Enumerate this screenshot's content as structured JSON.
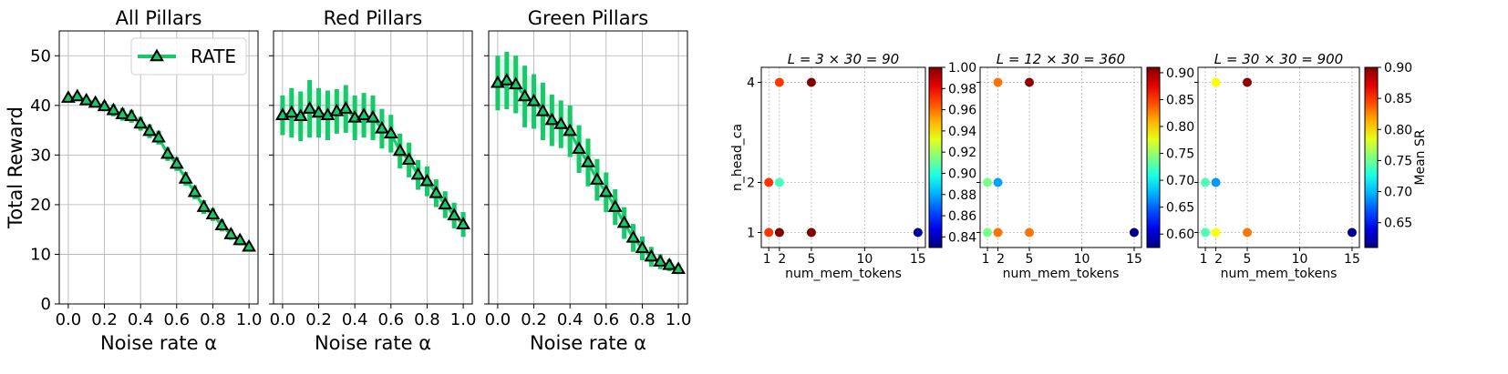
{
  "chart_data": [
    {
      "type": "line",
      "title": "All Pillars",
      "xlabel": "Noise rate α",
      "ylabel": "Total Reward",
      "xlim": [
        -0.05,
        1.05
      ],
      "ylim": [
        0,
        55
      ],
      "xticks": [
        0.0,
        0.2,
        0.4,
        0.6,
        0.8,
        1.0
      ],
      "xtick_labels": [
        "0.0",
        "0.2",
        "0.4",
        "0.6",
        "0.8",
        "1.0"
      ],
      "yticks": [
        0,
        10,
        20,
        30,
        40,
        50
      ],
      "ytick_labels": [
        "0",
        "10",
        "20",
        "30",
        "40",
        "50"
      ],
      "grid": true,
      "legend": {
        "position": "top-right",
        "entries": [
          "RATE"
        ]
      },
      "series": [
        {
          "name": "RATE",
          "color": "#19c86a",
          "marker": "triangle",
          "x": [
            0.0,
            0.05,
            0.1,
            0.15,
            0.2,
            0.25,
            0.3,
            0.35,
            0.4,
            0.45,
            0.5,
            0.55,
            0.6,
            0.65,
            0.7,
            0.75,
            0.8,
            0.85,
            0.9,
            0.95,
            1.0
          ],
          "y": [
            41.5,
            41.8,
            41.0,
            40.5,
            39.8,
            39.0,
            38.2,
            37.8,
            36.3,
            34.8,
            33.5,
            30.2,
            28.2,
            25.2,
            22.5,
            19.5,
            18.0,
            15.8,
            14.0,
            12.8,
            11.5
          ],
          "err": [
            0.7,
            0.8,
            0.8,
            0.9,
            1.0,
            1.2,
            1.3,
            1.3,
            1.4,
            1.4,
            1.4,
            1.4,
            1.4,
            1.4,
            1.4,
            1.4,
            1.3,
            1.2,
            1.1,
            1.0,
            0.9
          ]
        }
      ]
    },
    {
      "type": "line",
      "title": "Red Pillars",
      "xlabel": "Noise rate α",
      "ylabel": "",
      "xlim": [
        -0.05,
        1.05
      ],
      "ylim": [
        0,
        55
      ],
      "xticks": [
        0.0,
        0.2,
        0.4,
        0.6,
        0.8,
        1.0
      ],
      "xtick_labels": [
        "0.0",
        "0.2",
        "0.4",
        "0.6",
        "0.8",
        "1.0"
      ],
      "yticks": [
        0,
        10,
        20,
        30,
        40,
        50
      ],
      "grid": true,
      "series": [
        {
          "name": "RATE",
          "color": "#19c86a",
          "marker": "triangle",
          "x": [
            0.0,
            0.05,
            0.1,
            0.15,
            0.2,
            0.25,
            0.3,
            0.35,
            0.4,
            0.45,
            0.5,
            0.55,
            0.6,
            0.65,
            0.7,
            0.75,
            0.8,
            0.85,
            0.9,
            0.95,
            1.0
          ],
          "y": [
            38.0,
            38.5,
            37.8,
            39.3,
            38.5,
            38.0,
            38.8,
            39.3,
            37.5,
            38.0,
            37.5,
            35.3,
            34.3,
            30.8,
            29.0,
            26.0,
            24.7,
            22.3,
            20.0,
            17.8,
            16.0
          ],
          "err": [
            4.0,
            5.0,
            5.0,
            5.8,
            5.0,
            5.0,
            4.5,
            4.8,
            4.5,
            4.5,
            4.5,
            4.0,
            3.8,
            3.5,
            3.5,
            3.0,
            3.0,
            2.8,
            2.7,
            2.6,
            2.5
          ]
        }
      ]
    },
    {
      "type": "line",
      "title": "Green Pillars",
      "xlabel": "Noise rate α",
      "ylabel": "",
      "xlim": [
        -0.05,
        1.05
      ],
      "ylim": [
        0,
        55
      ],
      "xticks": [
        0.0,
        0.2,
        0.4,
        0.6,
        0.8,
        1.0
      ],
      "xtick_labels": [
        "0.0",
        "0.2",
        "0.4",
        "0.6",
        "0.8",
        "1.0"
      ],
      "yticks": [
        0,
        10,
        20,
        30,
        40,
        50
      ],
      "grid": true,
      "series": [
        {
          "name": "RATE",
          "color": "#19c86a",
          "marker": "triangle",
          "x": [
            0.0,
            0.05,
            0.1,
            0.15,
            0.2,
            0.25,
            0.3,
            0.35,
            0.4,
            0.45,
            0.5,
            0.55,
            0.6,
            0.65,
            0.7,
            0.75,
            0.8,
            0.85,
            0.9,
            0.95,
            1.0
          ],
          "y": [
            44.5,
            45.0,
            44.2,
            41.8,
            40.8,
            38.8,
            37.0,
            36.2,
            34.8,
            31.2,
            28.5,
            25.0,
            22.5,
            19.5,
            16.3,
            13.3,
            11.2,
            9.5,
            8.5,
            7.8,
            7.0
          ],
          "err": [
            5.5,
            5.8,
            5.8,
            6.2,
            5.5,
            5.8,
            5.2,
            4.8,
            5.2,
            4.8,
            4.8,
            4.2,
            4.0,
            3.6,
            3.2,
            2.8,
            2.4,
            2.0,
            1.5,
            1.2,
            1.0
          ]
        }
      ]
    },
    {
      "type": "scatter",
      "title": "L = 3 × 30 = 90",
      "xlabel": "num_mem_tokens",
      "ylabel": "n_head_ca",
      "xlim": [
        0.3,
        15.7
      ],
      "ylim": [
        0.7,
        4.3
      ],
      "xticks": [
        1,
        2,
        5,
        10,
        15
      ],
      "xtick_labels": [
        "1",
        "2",
        "5",
        "10",
        "15"
      ],
      "yticks": [
        1,
        2,
        4
      ],
      "ytick_labels": [
        "1",
        "2",
        "4"
      ],
      "grid": true,
      "colormap": "jet",
      "colorbar": {
        "min": 0.83,
        "max": 1.0,
        "ticks": [
          0.84,
          0.86,
          0.88,
          0.9,
          0.92,
          0.94,
          0.96,
          0.98,
          1.0
        ],
        "tick_labels": [
          "0.84",
          "0.86",
          "0.88",
          "0.90",
          "0.92",
          "0.94",
          "0.96",
          "0.98",
          "1.00"
        ]
      },
      "points": [
        {
          "x": 1,
          "y": 1,
          "value": 0.97
        },
        {
          "x": 2,
          "y": 1,
          "value": 1.0
        },
        {
          "x": 5,
          "y": 1,
          "value": 1.0
        },
        {
          "x": 15,
          "y": 1,
          "value": 0.835
        },
        {
          "x": 1,
          "y": 2,
          "value": 0.97
        },
        {
          "x": 2,
          "y": 2,
          "value": 0.905
        },
        {
          "x": 2,
          "y": 4,
          "value": 0.97
        },
        {
          "x": 5,
          "y": 4,
          "value": 1.0
        }
      ]
    },
    {
      "type": "scatter",
      "title": "L = 12 × 30 = 360",
      "xlabel": "num_mem_tokens",
      "ylabel": "",
      "xlim": [
        0.3,
        15.7
      ],
      "ylim": [
        0.7,
        4.3
      ],
      "xticks": [
        1,
        2,
        5,
        10,
        15
      ],
      "xtick_labels": [
        "1",
        "2",
        "5",
        "10",
        "15"
      ],
      "yticks": [
        1,
        2,
        4
      ],
      "grid": true,
      "colormap": "jet",
      "colorbar": {
        "min": 0.575,
        "max": 0.91,
        "ticks": [
          0.6,
          0.65,
          0.7,
          0.75,
          0.8,
          0.85,
          0.9
        ],
        "tick_labels": [
          "0.60",
          "0.65",
          "0.70",
          "0.75",
          "0.80",
          "0.85",
          "0.90"
        ]
      },
      "points": [
        {
          "x": 1,
          "y": 1,
          "value": 0.74
        },
        {
          "x": 2,
          "y": 1,
          "value": 0.83
        },
        {
          "x": 5,
          "y": 1,
          "value": 0.83
        },
        {
          "x": 15,
          "y": 1,
          "value": 0.58
        },
        {
          "x": 1,
          "y": 2,
          "value": 0.74
        },
        {
          "x": 2,
          "y": 2,
          "value": 0.67
        },
        {
          "x": 2,
          "y": 4,
          "value": 0.83
        },
        {
          "x": 5,
          "y": 4,
          "value": 0.905
        }
      ]
    },
    {
      "type": "scatter",
      "title": "L = 30 × 30 = 900",
      "xlabel": "num_mem_tokens",
      "ylabel": "",
      "xlim": [
        0.3,
        15.7
      ],
      "ylim": [
        0.7,
        4.3
      ],
      "xticks": [
        1,
        2,
        5,
        10,
        15
      ],
      "xtick_labels": [
        "1",
        "2",
        "5",
        "10",
        "15"
      ],
      "yticks": [
        1,
        2,
        4
      ],
      "grid": true,
      "colormap": "jet",
      "colorbar": {
        "label": "Mean SR",
        "min": 0.61,
        "max": 0.9,
        "ticks": [
          0.65,
          0.7,
          0.75,
          0.8,
          0.85,
          0.9
        ],
        "tick_labels": [
          "0.65",
          "0.70",
          "0.75",
          "0.80",
          "0.85",
          "0.90"
        ]
      },
      "points": [
        {
          "x": 1,
          "y": 1,
          "value": 0.74
        },
        {
          "x": 2,
          "y": 1,
          "value": 0.79
        },
        {
          "x": 5,
          "y": 1,
          "value": 0.83
        },
        {
          "x": 15,
          "y": 1,
          "value": 0.615
        },
        {
          "x": 1,
          "y": 2,
          "value": 0.74
        },
        {
          "x": 2,
          "y": 2,
          "value": 0.69
        },
        {
          "x": 2,
          "y": 4,
          "value": 0.79
        },
        {
          "x": 5,
          "y": 4,
          "value": 0.895
        }
      ]
    }
  ]
}
